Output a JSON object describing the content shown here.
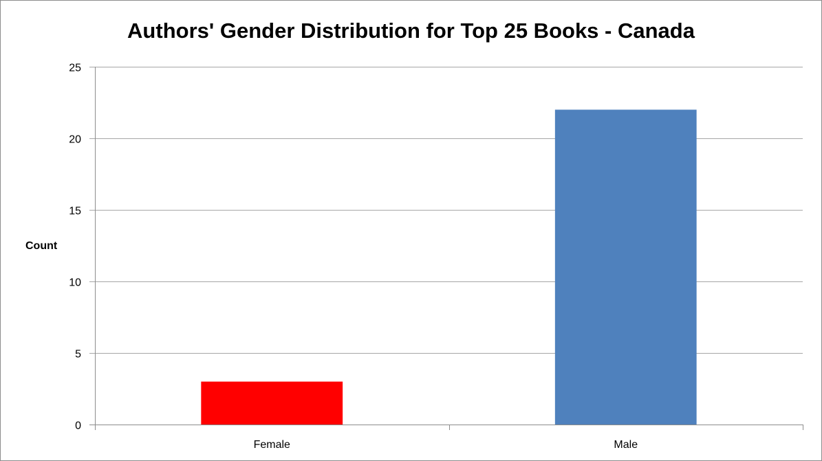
{
  "chart_data": {
    "type": "bar",
    "title": "Authors' Gender Distribution for Top 25 Books - Canada",
    "xlabel": "",
    "ylabel": "Count",
    "categories": [
      "Female",
      "Male"
    ],
    "values": [
      3,
      22
    ],
    "ylim": [
      0,
      25
    ],
    "yticks": [
      "0",
      "5",
      "10",
      "15",
      "20",
      "25"
    ],
    "grid": true,
    "legend": "none",
    "colors": [
      "#ff0000",
      "#4f81bd"
    ]
  }
}
